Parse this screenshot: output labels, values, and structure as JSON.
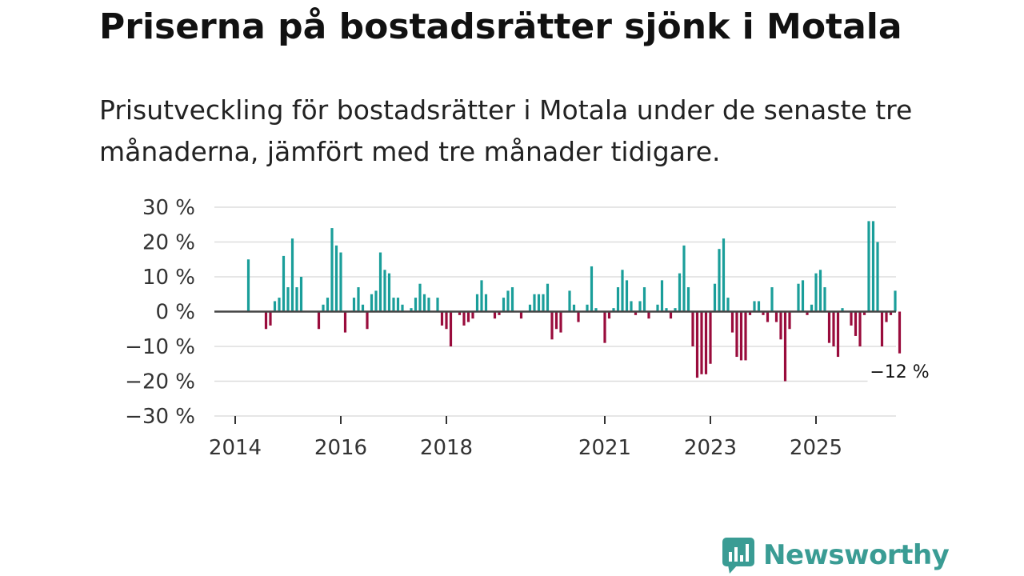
{
  "header": {
    "title": "Priserna på bostadsrätter sjönk i Motala",
    "subtitle": "Prisutveckling för bostadsrätter i Motala under de senaste tre månaderna, jämfört med tre månader tidigare."
  },
  "colors": {
    "positive": "#1a9e9a",
    "negative": "#990c3c",
    "logo": "#3a9c94"
  },
  "brand": {
    "name": "Newsworthy",
    "icon": "chart-bubble-icon"
  },
  "chart_data": {
    "type": "bar",
    "title": "Priserna på bostadsrätter sjönk i Motala",
    "ylabel": "",
    "xlabel": "",
    "ylim": [
      -30,
      30
    ],
    "y_ticks": [
      30,
      20,
      10,
      0,
      -10,
      -20,
      -30
    ],
    "y_tick_labels": [
      "30 %",
      "20 %",
      "10 %",
      "0 %",
      "−10 %",
      "−20 %",
      "−30 %"
    ],
    "x_ticks": [
      {
        "label": "2014",
        "month": 0
      },
      {
        "label": "2016",
        "month": 24
      },
      {
        "label": "2018",
        "month": 48
      },
      {
        "label": "2021",
        "month": 84
      },
      {
        "label": "2023",
        "month": 108
      },
      {
        "label": "2025",
        "month": 132
      }
    ],
    "start": "2014-01",
    "grid": true,
    "end_label": "−12 %",
    "values": [
      0,
      0,
      0,
      15,
      0,
      0,
      0,
      -5,
      -4,
      3,
      4,
      16,
      7,
      21,
      7,
      10,
      0,
      0,
      0,
      -5,
      2,
      4,
      24,
      19,
      17,
      -6,
      0,
      4,
      7,
      2,
      -5,
      5,
      6,
      17,
      12,
      11,
      4,
      4,
      2,
      0,
      1,
      4,
      8,
      5,
      4,
      0,
      4,
      -4,
      -5,
      -10,
      0,
      -1,
      -4,
      -3,
      -2,
      5,
      9,
      5,
      0,
      -2,
      -1,
      4,
      6,
      7,
      0,
      -2,
      0,
      2,
      5,
      5,
      5,
      8,
      -8,
      -5,
      -6,
      0,
      6,
      2,
      -3,
      0,
      2,
      13,
      1,
      0,
      -9,
      -2,
      1,
      7,
      12,
      9,
      3,
      -1,
      3,
      7,
      -2,
      0,
      2,
      9,
      1,
      -2,
      1,
      11,
      19,
      7,
      -10,
      -19,
      -18,
      -18,
      -15,
      8,
      18,
      21,
      4,
      -6,
      -13,
      -14,
      -14,
      -1,
      3,
      3,
      -1,
      -3,
      7,
      -3,
      -8,
      -20,
      -5,
      0,
      8,
      9,
      -1,
      2,
      11,
      12,
      7,
      -9,
      -10,
      -13,
      1,
      0,
      -4,
      -7,
      -10,
      -1,
      26,
      26,
      20,
      -10,
      -3,
      -1,
      6,
      -12
    ]
  }
}
